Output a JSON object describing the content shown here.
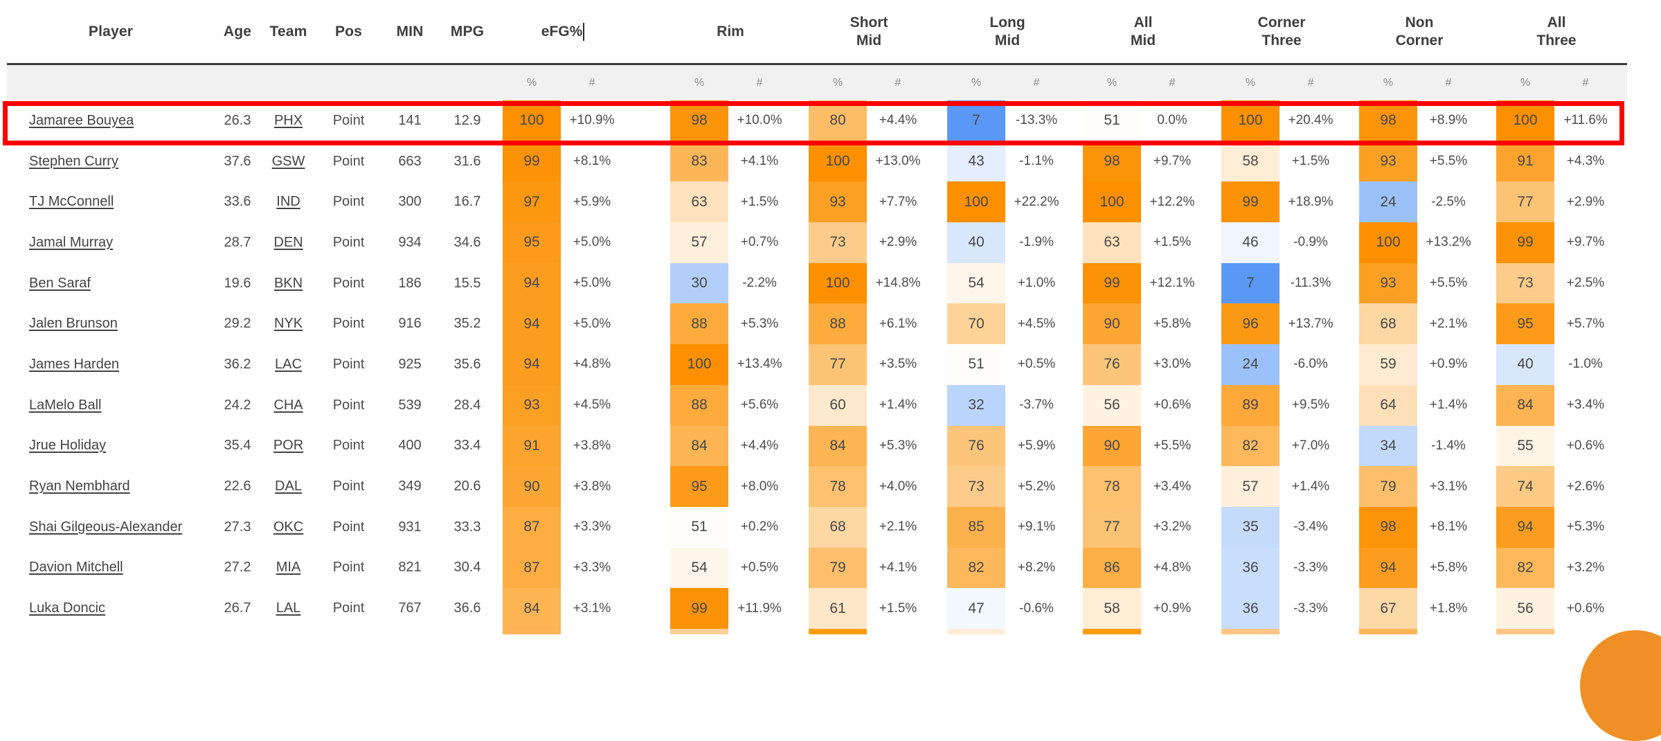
{
  "colors": {
    "scale_high": "#fc9000",
    "scale_low": "#3f87f5",
    "scale_mid": "#ffffff",
    "highlight_border": "#fd0000",
    "subheader_bg": "#f1f1f1",
    "header_rule": "#3a3a3a",
    "fab_bg": "#ef8f25"
  },
  "header": {
    "info_columns": [
      "Player",
      "Age",
      "Team",
      "Pos",
      "MIN",
      "MPG"
    ],
    "stat_groups": [
      {
        "key": "efg",
        "label_lines": [
          "eFG%"
        ],
        "has_caret": true
      },
      {
        "key": "rim",
        "label_lines": [
          "Rim"
        ],
        "has_caret": false
      },
      {
        "key": "short-mid",
        "label_lines": [
          "Short",
          "Mid"
        ],
        "has_caret": false
      },
      {
        "key": "long-mid",
        "label_lines": [
          "Long",
          "Mid"
        ],
        "has_caret": false
      },
      {
        "key": "all-mid",
        "label_lines": [
          "All",
          "Mid"
        ],
        "has_caret": false
      },
      {
        "key": "corner-three",
        "label_lines": [
          "Corner",
          "Three"
        ],
        "has_caret": false
      },
      {
        "key": "non-corner",
        "label_lines": [
          "Non",
          "Corner"
        ],
        "has_caret": false
      },
      {
        "key": "all-three",
        "label_lines": [
          "All",
          "Three"
        ],
        "has_caret": false
      }
    ],
    "sub_labels": {
      "pct": "%",
      "num": "#"
    }
  },
  "players": [
    {
      "name": "Jamaree Bouyea",
      "age": "26.3",
      "team": "PHX",
      "pos": "Point",
      "min": "141",
      "mpg": "12.9",
      "highlighted": true,
      "stats": [
        {
          "pct": 100,
          "diff": "+10.9%"
        },
        {
          "pct": 98,
          "diff": "+10.0%"
        },
        {
          "pct": 80,
          "diff": "+4.4%"
        },
        {
          "pct": 7,
          "diff": "-13.3%"
        },
        {
          "pct": 51,
          "diff": "0.0%"
        },
        {
          "pct": 100,
          "diff": "+20.4%"
        },
        {
          "pct": 98,
          "diff": "+8.9%"
        },
        {
          "pct": 100,
          "diff": "+11.6%"
        }
      ]
    },
    {
      "name": "Stephen Curry",
      "age": "37.6",
      "team": "GSW",
      "pos": "Point",
      "min": "663",
      "mpg": "31.6",
      "highlighted": false,
      "stats": [
        {
          "pct": 99,
          "diff": "+8.1%"
        },
        {
          "pct": 83,
          "diff": "+4.1%"
        },
        {
          "pct": 100,
          "diff": "+13.0%"
        },
        {
          "pct": 43,
          "diff": "-1.1%"
        },
        {
          "pct": 98,
          "diff": "+9.7%"
        },
        {
          "pct": 58,
          "diff": "+1.5%"
        },
        {
          "pct": 93,
          "diff": "+5.5%"
        },
        {
          "pct": 91,
          "diff": "+4.3%"
        }
      ]
    },
    {
      "name": "TJ McConnell",
      "age": "33.6",
      "team": "IND",
      "pos": "Point",
      "min": "300",
      "mpg": "16.7",
      "highlighted": false,
      "stats": [
        {
          "pct": 97,
          "diff": "+5.9%"
        },
        {
          "pct": 63,
          "diff": "+1.5%"
        },
        {
          "pct": 93,
          "diff": "+7.7%"
        },
        {
          "pct": 100,
          "diff": "+22.2%"
        },
        {
          "pct": 100,
          "diff": "+12.2%"
        },
        {
          "pct": 99,
          "diff": "+18.9%"
        },
        {
          "pct": 24,
          "diff": "-2.5%"
        },
        {
          "pct": 77,
          "diff": "+2.9%"
        }
      ]
    },
    {
      "name": "Jamal Murray",
      "age": "28.7",
      "team": "DEN",
      "pos": "Point",
      "min": "934",
      "mpg": "34.6",
      "highlighted": false,
      "stats": [
        {
          "pct": 95,
          "diff": "+5.0%"
        },
        {
          "pct": 57,
          "diff": "+0.7%"
        },
        {
          "pct": 73,
          "diff": "+2.9%"
        },
        {
          "pct": 40,
          "diff": "-1.9%"
        },
        {
          "pct": 63,
          "diff": "+1.5%"
        },
        {
          "pct": 46,
          "diff": "-0.9%"
        },
        {
          "pct": 100,
          "diff": "+13.2%"
        },
        {
          "pct": 99,
          "diff": "+9.7%"
        }
      ]
    },
    {
      "name": "Ben Saraf",
      "age": "19.6",
      "team": "BKN",
      "pos": "Point",
      "min": "186",
      "mpg": "15.5",
      "highlighted": false,
      "stats": [
        {
          "pct": 94,
          "diff": "+5.0%"
        },
        {
          "pct": 30,
          "diff": "-2.2%"
        },
        {
          "pct": 100,
          "diff": "+14.8%"
        },
        {
          "pct": 54,
          "diff": "+1.0%"
        },
        {
          "pct": 99,
          "diff": "+12.1%"
        },
        {
          "pct": 7,
          "diff": "-11.3%"
        },
        {
          "pct": 93,
          "diff": "+5.5%"
        },
        {
          "pct": 73,
          "diff": "+2.5%"
        }
      ]
    },
    {
      "name": "Jalen Brunson",
      "age": "29.2",
      "team": "NYK",
      "pos": "Point",
      "min": "916",
      "mpg": "35.2",
      "highlighted": false,
      "stats": [
        {
          "pct": 94,
          "diff": "+5.0%"
        },
        {
          "pct": 88,
          "diff": "+5.3%"
        },
        {
          "pct": 88,
          "diff": "+6.1%"
        },
        {
          "pct": 70,
          "diff": "+4.5%"
        },
        {
          "pct": 90,
          "diff": "+5.8%"
        },
        {
          "pct": 96,
          "diff": "+13.7%"
        },
        {
          "pct": 68,
          "diff": "+2.1%"
        },
        {
          "pct": 95,
          "diff": "+5.7%"
        }
      ]
    },
    {
      "name": "James Harden",
      "age": "36.2",
      "team": "LAC",
      "pos": "Point",
      "min": "925",
      "mpg": "35.6",
      "highlighted": false,
      "stats": [
        {
          "pct": 94,
          "diff": "+4.8%"
        },
        {
          "pct": 100,
          "diff": "+13.4%"
        },
        {
          "pct": 77,
          "diff": "+3.5%"
        },
        {
          "pct": 51,
          "diff": "+0.5%"
        },
        {
          "pct": 76,
          "diff": "+3.0%"
        },
        {
          "pct": 24,
          "diff": "-6.0%"
        },
        {
          "pct": 59,
          "diff": "+0.9%"
        },
        {
          "pct": 40,
          "diff": "-1.0%"
        }
      ]
    },
    {
      "name": "LaMelo Ball",
      "age": "24.2",
      "team": "CHA",
      "pos": "Point",
      "min": "539",
      "mpg": "28.4",
      "highlighted": false,
      "stats": [
        {
          "pct": 93,
          "diff": "+4.5%"
        },
        {
          "pct": 88,
          "diff": "+5.6%"
        },
        {
          "pct": 60,
          "diff": "+1.4%"
        },
        {
          "pct": 32,
          "diff": "-3.7%"
        },
        {
          "pct": 56,
          "diff": "+0.6%"
        },
        {
          "pct": 89,
          "diff": "+9.5%"
        },
        {
          "pct": 64,
          "diff": "+1.4%"
        },
        {
          "pct": 84,
          "diff": "+3.4%"
        }
      ]
    },
    {
      "name": "Jrue Holiday",
      "age": "35.4",
      "team": "POR",
      "pos": "Point",
      "min": "400",
      "mpg": "33.4",
      "highlighted": false,
      "stats": [
        {
          "pct": 91,
          "diff": "+3.8%"
        },
        {
          "pct": 84,
          "diff": "+4.4%"
        },
        {
          "pct": 84,
          "diff": "+5.3%"
        },
        {
          "pct": 76,
          "diff": "+5.9%"
        },
        {
          "pct": 90,
          "diff": "+5.5%"
        },
        {
          "pct": 82,
          "diff": "+7.0%"
        },
        {
          "pct": 34,
          "diff": "-1.4%"
        },
        {
          "pct": 55,
          "diff": "+0.6%"
        }
      ]
    },
    {
      "name": "Ryan Nembhard",
      "age": "22.6",
      "team": "DAL",
      "pos": "Point",
      "min": "349",
      "mpg": "20.6",
      "highlighted": false,
      "stats": [
        {
          "pct": 90,
          "diff": "+3.8%"
        },
        {
          "pct": 95,
          "diff": "+8.0%"
        },
        {
          "pct": 78,
          "diff": "+4.0%"
        },
        {
          "pct": 73,
          "diff": "+5.2%"
        },
        {
          "pct": 78,
          "diff": "+3.4%"
        },
        {
          "pct": 57,
          "diff": "+1.4%"
        },
        {
          "pct": 79,
          "diff": "+3.1%"
        },
        {
          "pct": 74,
          "diff": "+2.6%"
        }
      ]
    },
    {
      "name": "Shai Gilgeous-Alexander",
      "age": "27.3",
      "team": "OKC",
      "pos": "Point",
      "min": "931",
      "mpg": "33.3",
      "highlighted": false,
      "stats": [
        {
          "pct": 87,
          "diff": "+3.3%"
        },
        {
          "pct": 51,
          "diff": "+0.2%"
        },
        {
          "pct": 68,
          "diff": "+2.1%"
        },
        {
          "pct": 85,
          "diff": "+9.1%"
        },
        {
          "pct": 77,
          "diff": "+3.2%"
        },
        {
          "pct": 35,
          "diff": "-3.4%"
        },
        {
          "pct": 98,
          "diff": "+8.1%"
        },
        {
          "pct": 94,
          "diff": "+5.3%"
        }
      ]
    },
    {
      "name": "Davion Mitchell",
      "age": "27.2",
      "team": "MIA",
      "pos": "Point",
      "min": "821",
      "mpg": "30.4",
      "highlighted": false,
      "stats": [
        {
          "pct": 87,
          "diff": "+3.3%"
        },
        {
          "pct": 54,
          "diff": "+0.5%"
        },
        {
          "pct": 79,
          "diff": "+4.1%"
        },
        {
          "pct": 82,
          "diff": "+8.2%"
        },
        {
          "pct": 86,
          "diff": "+4.8%"
        },
        {
          "pct": 36,
          "diff": "-3.3%"
        },
        {
          "pct": 94,
          "diff": "+5.8%"
        },
        {
          "pct": 82,
          "diff": "+3.2%"
        }
      ]
    },
    {
      "name": "Luka Doncic",
      "age": "26.7",
      "team": "LAL",
      "pos": "Point",
      "min": "767",
      "mpg": "36.6",
      "highlighted": false,
      "stats": [
        {
          "pct": 84,
          "diff": "+3.1%"
        },
        {
          "pct": 99,
          "diff": "+11.9%"
        },
        {
          "pct": 61,
          "diff": "+1.5%"
        },
        {
          "pct": 47,
          "diff": "-0.6%"
        },
        {
          "pct": 58,
          "diff": "+0.9%"
        },
        {
          "pct": 36,
          "diff": "-3.3%"
        },
        {
          "pct": 67,
          "diff": "+1.8%"
        },
        {
          "pct": 56,
          "diff": "+0.6%"
        }
      ]
    }
  ],
  "partial_next_row_colors": [
    "#ffb558",
    "#ffcf97",
    "#ff9c0e",
    "#ffedd8",
    "#ff9c0e",
    "#ffc585",
    "#ffb558",
    "#ffc585"
  ]
}
